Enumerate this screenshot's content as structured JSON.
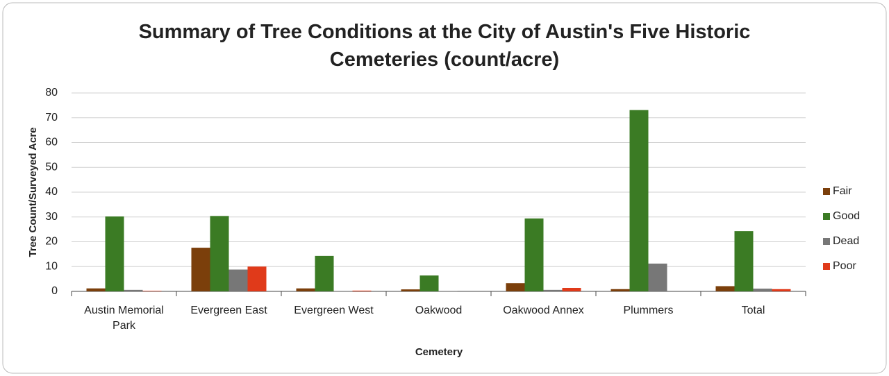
{
  "chart_data": {
    "type": "bar",
    "title": "Summary of Tree Conditions at the City of Austin's Five Historic Cemeteries (count/acre)",
    "x_label": "Cemetery",
    "y_label": "Tree Count/Surveyed Acre",
    "categories": [
      "Austin Memorial Park",
      "Evergreen East",
      "Evergreen West",
      "Oakwood",
      "Oakwood Annex",
      "Plummers",
      "Total"
    ],
    "series": [
      {
        "name": "Fair",
        "color": "#7b3f0b",
        "values": [
          1.2,
          17.6,
          1.2,
          0.8,
          3.3,
          0.9,
          2.1
        ]
      },
      {
        "name": "Good",
        "color": "#3b7b24",
        "values": [
          30.2,
          30.4,
          14.3,
          6.4,
          29.4,
          73.1,
          24.3
        ]
      },
      {
        "name": "Dead",
        "color": "#777777",
        "values": [
          0.6,
          8.8,
          0.1,
          0.1,
          0.6,
          11.2,
          1.1
        ]
      },
      {
        "name": "Poor",
        "color": "#e03a1a",
        "values": [
          0.2,
          10,
          0.3,
          0,
          1.4,
          0,
          0.9
        ]
      }
    ],
    "ylim": [
      0,
      80
    ],
    "yticks": [
      0,
      10,
      20,
      30,
      40,
      50,
      60,
      70,
      80
    ],
    "grid": true,
    "legend": "right"
  }
}
